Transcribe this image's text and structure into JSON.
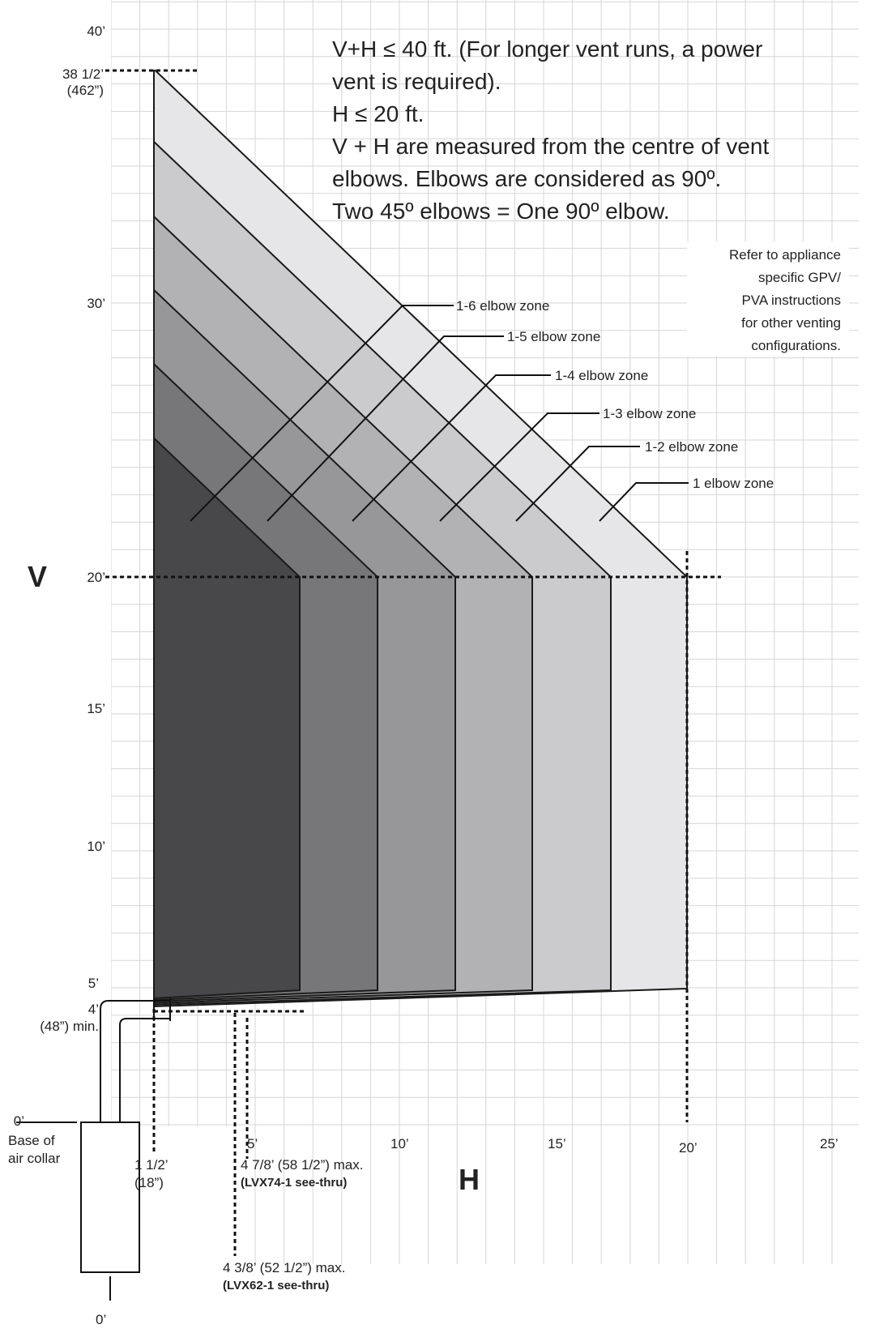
{
  "header": {
    "lines": [
      "V+H ≤ 40 ft. (For longer vent runs, a power",
      "vent is required).",
      "H ≤ 20 ft.",
      "V + H are measured from the centre of vent",
      "elbows. Elbows are considered as 90º.",
      "Two 45º elbows = One 90º elbow."
    ]
  },
  "note": {
    "lines": [
      "Refer to appliance",
      "specific GPV/",
      "PVA instructions",
      "for other venting",
      "configurations."
    ]
  },
  "zones": [
    "1-6 elbow zone",
    "1-5 elbow zone",
    "1-4 elbow zone",
    "1-3 elbow zone",
    "1-2 elbow zone",
    "1 elbow zone"
  ],
  "v_axis": {
    "title": "V",
    "labels": [
      "40’",
      "38 1/2’",
      "(462”)",
      "30’",
      "20’",
      "15’",
      "10’",
      "5’",
      "4’",
      "(48”) min.",
      "0’"
    ]
  },
  "h_axis": {
    "title": "H",
    "labels": [
      "5’",
      "10’",
      "15’",
      "20’",
      "25’"
    ]
  },
  "base": {
    "lines": [
      "Base of",
      "air collar"
    ],
    "bottom": "0’"
  },
  "min_offset": {
    "lines": [
      "1 1/2’",
      "(18”)"
    ]
  },
  "lvx74": {
    "dim": "4 7/8’ (58 1/2”) max.",
    "model": "(LVX74-1 see-thru)"
  },
  "lvx62": {
    "dim": "4 3/8’ (52 1/2”) max.",
    "model": "(LVX62-1 see-thru)"
  }
}
